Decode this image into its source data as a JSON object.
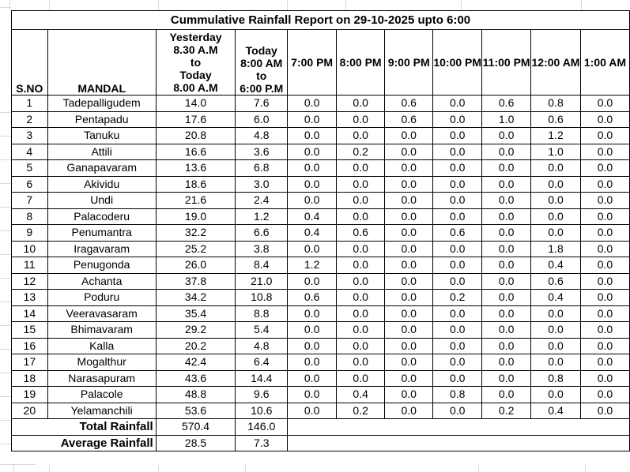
{
  "title": "Cummulative Rainfall Report on 29-10-2025 upto 6:00",
  "table": {
    "headers": {
      "sno": "S.NO",
      "mandal": "MANDAL",
      "yesterday": "Yesterday\n8.30 A.M\nto\nToday\n8.00 A.M",
      "today": "Today\n8:00 AM\nto\n6:00 P.M",
      "times": [
        "7:00 PM",
        "8:00 PM",
        "9:00 PM",
        "10:00 PM",
        "11:00 PM",
        "12:00 AM",
        "1:00 AM"
      ]
    },
    "rows": [
      {
        "sno": "1",
        "mandal": "Tadepalligudem",
        "yesterday": "14.0",
        "today": "7.6",
        "times": [
          "0.0",
          "0.0",
          "0.6",
          "0.0",
          "0.6",
          "0.8",
          "0.0"
        ]
      },
      {
        "sno": "2",
        "mandal": "Pentapadu",
        "yesterday": "17.6",
        "today": "6.0",
        "times": [
          "0.0",
          "0.0",
          "0.6",
          "0.0",
          "1.0",
          "0.6",
          "0.0"
        ]
      },
      {
        "sno": "3",
        "mandal": "Tanuku",
        "yesterday": "20.8",
        "today": "4.8",
        "times": [
          "0.0",
          "0.0",
          "0.0",
          "0.0",
          "0.0",
          "1.2",
          "0.0"
        ]
      },
      {
        "sno": "4",
        "mandal": "Attili",
        "yesterday": "16.6",
        "today": "3.6",
        "times": [
          "0.0",
          "0.2",
          "0.0",
          "0.0",
          "0.0",
          "1.0",
          "0.0"
        ]
      },
      {
        "sno": "5",
        "mandal": "Ganapavaram",
        "yesterday": "13.6",
        "today": "6.8",
        "times": [
          "0.0",
          "0.0",
          "0.0",
          "0.0",
          "0.0",
          "0.0",
          "0.0"
        ]
      },
      {
        "sno": "6",
        "mandal": "Akividu",
        "yesterday": "18.6",
        "today": "3.0",
        "times": [
          "0.0",
          "0.0",
          "0.0",
          "0.0",
          "0.0",
          "0.0",
          "0.0"
        ]
      },
      {
        "sno": "7",
        "mandal": "Undi",
        "yesterday": "21.6",
        "today": "2.4",
        "times": [
          "0.0",
          "0.0",
          "0.0",
          "0.0",
          "0.0",
          "0.0",
          "0.0"
        ]
      },
      {
        "sno": "8",
        "mandal": "Palacoderu",
        "yesterday": "19.0",
        "today": "1.2",
        "times": [
          "0.4",
          "0.0",
          "0.0",
          "0.0",
          "0.0",
          "0.0",
          "0.0"
        ]
      },
      {
        "sno": "9",
        "mandal": "Penumantra",
        "yesterday": "32.2",
        "today": "6.6",
        "times": [
          "0.4",
          "0.6",
          "0.0",
          "0.6",
          "0.0",
          "0.0",
          "0.0"
        ]
      },
      {
        "sno": "10",
        "mandal": "Iragavaram",
        "yesterday": "25.2",
        "today": "3.8",
        "times": [
          "0.0",
          "0.0",
          "0.0",
          "0.0",
          "0.0",
          "1.8",
          "0.0"
        ]
      },
      {
        "sno": "11",
        "mandal": "Penugonda",
        "yesterday": "26.0",
        "today": "8.4",
        "times": [
          "1.2",
          "0.0",
          "0.0",
          "0.0",
          "0.0",
          "0.4",
          "0.0"
        ]
      },
      {
        "sno": "12",
        "mandal": "Achanta",
        "yesterday": "37.8",
        "today": "21.0",
        "times": [
          "0.0",
          "0.0",
          "0.0",
          "0.0",
          "0.0",
          "0.6",
          "0.0"
        ]
      },
      {
        "sno": "13",
        "mandal": "Poduru",
        "yesterday": "34.2",
        "today": "10.8",
        "times": [
          "0.6",
          "0.0",
          "0.0",
          "0.2",
          "0.0",
          "0.4",
          "0.0"
        ]
      },
      {
        "sno": "14",
        "mandal": "Veeravasaram",
        "yesterday": "35.4",
        "today": "8.8",
        "times": [
          "0.0",
          "0.0",
          "0.0",
          "0.0",
          "0.0",
          "0.0",
          "0.0"
        ]
      },
      {
        "sno": "15",
        "mandal": "Bhimavaram",
        "yesterday": "29.2",
        "today": "5.4",
        "times": [
          "0.0",
          "0.0",
          "0.0",
          "0.0",
          "0.0",
          "0.0",
          "0.0"
        ]
      },
      {
        "sno": "16",
        "mandal": "Kalla",
        "yesterday": "20.2",
        "today": "4.8",
        "times": [
          "0.0",
          "0.0",
          "0.0",
          "0.0",
          "0.0",
          "0.0",
          "0.0"
        ]
      },
      {
        "sno": "17",
        "mandal": "Mogalthur",
        "yesterday": "42.4",
        "today": "6.4",
        "times": [
          "0.0",
          "0.0",
          "0.0",
          "0.0",
          "0.0",
          "0.0",
          "0.0"
        ]
      },
      {
        "sno": "18",
        "mandal": "Narasapuram",
        "yesterday": "43.6",
        "today": "14.4",
        "times": [
          "0.0",
          "0.0",
          "0.0",
          "0.0",
          "0.0",
          "0.8",
          "0.0"
        ]
      },
      {
        "sno": "19",
        "mandal": "Palacole",
        "yesterday": "48.8",
        "today": "9.6",
        "times": [
          "0.0",
          "0.4",
          "0.0",
          "0.8",
          "0.0",
          "0.0",
          "0.0"
        ]
      },
      {
        "sno": "20",
        "mandal": "Yelamanchili",
        "yesterday": "53.6",
        "today": "10.6",
        "times": [
          "0.0",
          "0.2",
          "0.0",
          "0.0",
          "0.2",
          "0.4",
          "0.0"
        ]
      }
    ],
    "total": {
      "label": "Total Rainfall",
      "yesterday": "570.4",
      "today": "146.0"
    },
    "average": {
      "label": "Average Rainfall",
      "yesterday": "28.5",
      "today": "7.3"
    }
  }
}
